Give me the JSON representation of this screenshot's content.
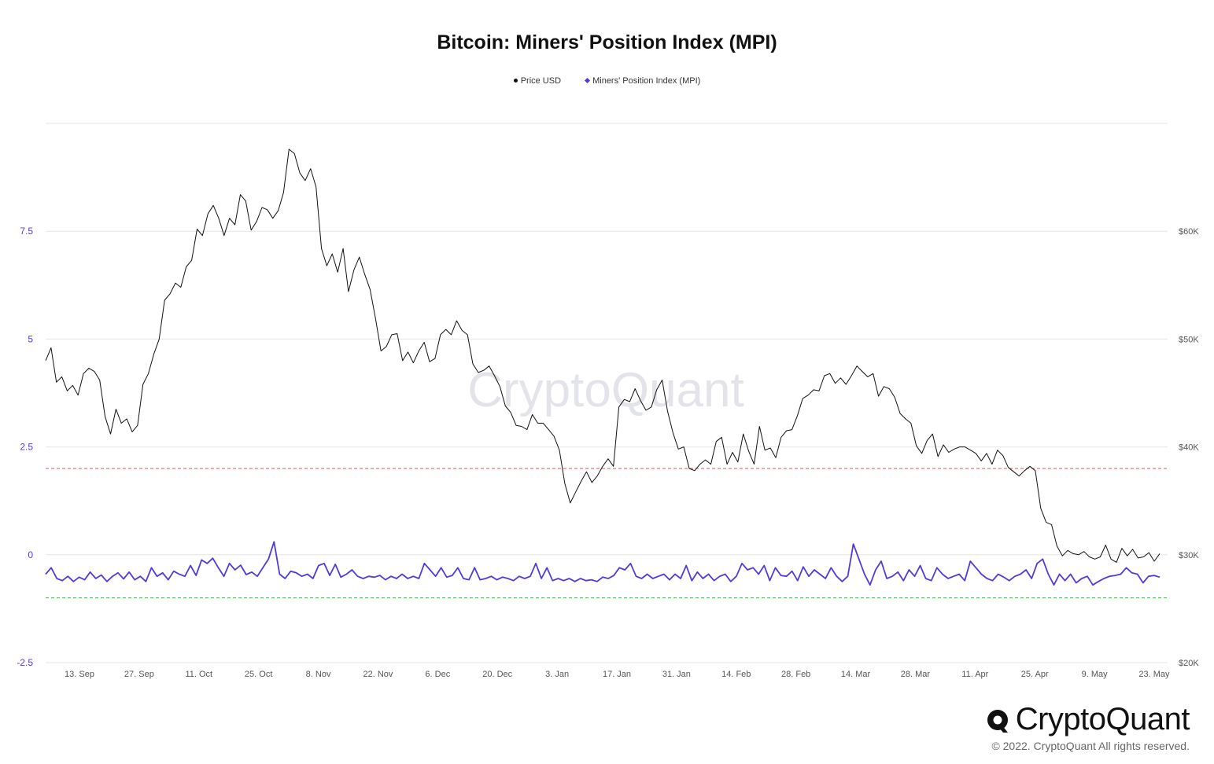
{
  "title": "Bitcoin: Miners' Position Index (MPI)",
  "legend": [
    {
      "label": "Price USD",
      "color": "#111111",
      "marker": "dot"
    },
    {
      "label": "Miners' Position Index (MPI)",
      "color": "#4f3bdb",
      "marker": "diamond"
    }
  ],
  "watermark": "CryptoQuant",
  "brand": {
    "name": "CryptoQuant",
    "copyright": "© 2022. CryptoQuant All rights reserved."
  },
  "chart_data": {
    "type": "line",
    "x_ticks": [
      "13. Sep",
      "27. Sep",
      "11. Oct",
      "25. Oct",
      "8. Nov",
      "22. Nov",
      "6. Dec",
      "20. Dec",
      "3. Jan",
      "17. Jan",
      "31. Jan",
      "14. Feb",
      "28. Feb",
      "14. Mar",
      "28. Mar",
      "11. Apr",
      "25. Apr",
      "9. May",
      "23. May"
    ],
    "left_axis": {
      "ticks": [
        "7.5",
        "5",
        "2.5",
        "0",
        "-2.5"
      ],
      "range": [
        -2.5,
        10
      ],
      "color": "#4f3bdb"
    },
    "right_axis": {
      "ticks": [
        "$60K",
        "$50K",
        "$40K",
        "$30K",
        "$20K"
      ],
      "range": [
        20000,
        70000
      ],
      "color": "#555555"
    },
    "reference_lines": [
      {
        "axis": "left",
        "value": 2.0,
        "color": "#e05555"
      },
      {
        "axis": "left",
        "value": -1.0,
        "color": "#4caf50"
      }
    ],
    "grid": true,
    "legend_position": "top-center",
    "series": [
      {
        "name": "Price USD",
        "axis": "right",
        "color": "#111111",
        "values": [
          48000,
          49200,
          46000,
          46500,
          45200,
          45700,
          44800,
          46800,
          47300,
          47000,
          46200,
          42800,
          41200,
          43500,
          42200,
          42600,
          41400,
          42000,
          45800,
          46800,
          48600,
          50000,
          53600,
          54200,
          55200,
          54800,
          56700,
          57300,
          60200,
          59600,
          61600,
          62400,
          61200,
          59600,
          61200,
          60600,
          63400,
          62800,
          60100,
          60900,
          62200,
          62000,
          61200,
          61900,
          63600,
          67600,
          67200,
          65400,
          64700,
          65800,
          64100,
          58400,
          56800,
          57900,
          56200,
          58400,
          54400,
          56400,
          57600,
          56000,
          54600,
          51900,
          48900,
          49300,
          50400,
          50500,
          48000,
          48800,
          47800,
          48900,
          49700,
          47900,
          48200,
          50400,
          50900,
          50400,
          51700,
          50800,
          50400,
          47700,
          46900,
          47100,
          47500,
          46600,
          45600,
          43800,
          43200,
          42000,
          41900,
          41600,
          43000,
          42200,
          42200,
          41600,
          41000,
          39700,
          36600,
          34800,
          35800,
          36800,
          37700,
          36700,
          37300,
          38200,
          38900,
          38200,
          43700,
          44400,
          44200,
          45400,
          44300,
          43400,
          43700,
          45300,
          46200,
          43300,
          41300,
          39800,
          40000,
          38000,
          37800,
          38400,
          38800,
          38400,
          40500,
          40900,
          38400,
          39500,
          38600,
          41200,
          39600,
          38400,
          41900,
          39700,
          39900,
          39000,
          40900,
          41500,
          41600,
          42900,
          44500,
          44800,
          45300,
          45200,
          46600,
          46800,
          45900,
          46400,
          45800,
          46600,
          47500,
          47000,
          46500,
          46800,
          44700,
          45600,
          45400,
          44600,
          43100,
          42600,
          42200,
          40100,
          39400,
          40600,
          41200,
          39100,
          40200,
          39500,
          39800,
          40000,
          40000,
          39700,
          39400,
          38700,
          39400,
          38400,
          39700,
          39200,
          38100,
          37700,
          37300,
          37800,
          38200,
          37800,
          34300,
          33000,
          32800,
          30800,
          29900,
          30400,
          30100,
          30000,
          30300,
          29800,
          29600,
          29800,
          30900,
          29600,
          29300,
          30600,
          29900,
          30500,
          29700,
          29800,
          30200,
          29400,
          30100
        ]
      },
      {
        "name": "Miners' Position Index (MPI)",
        "axis": "left",
        "color": "#4f3bdb",
        "values": [
          -0.45,
          -0.3,
          -0.55,
          -0.6,
          -0.5,
          -0.62,
          -0.52,
          -0.58,
          -0.4,
          -0.55,
          -0.47,
          -0.62,
          -0.5,
          -0.42,
          -0.56,
          -0.4,
          -0.58,
          -0.5,
          -0.62,
          -0.3,
          -0.5,
          -0.42,
          -0.58,
          -0.38,
          -0.45,
          -0.5,
          -0.25,
          -0.48,
          -0.12,
          -0.2,
          -0.08,
          -0.3,
          -0.5,
          -0.2,
          -0.35,
          -0.24,
          -0.46,
          -0.4,
          -0.5,
          -0.3,
          -0.1,
          0.3,
          -0.45,
          -0.55,
          -0.38,
          -0.42,
          -0.5,
          -0.45,
          -0.55,
          -0.25,
          -0.2,
          -0.48,
          -0.22,
          -0.52,
          -0.45,
          -0.35,
          -0.5,
          -0.55,
          -0.5,
          -0.52,
          -0.48,
          -0.58,
          -0.5,
          -0.55,
          -0.45,
          -0.55,
          -0.5,
          -0.55,
          -0.2,
          -0.35,
          -0.5,
          -0.3,
          -0.52,
          -0.48,
          -0.3,
          -0.55,
          -0.58,
          -0.3,
          -0.58,
          -0.55,
          -0.5,
          -0.58,
          -0.52,
          -0.55,
          -0.6,
          -0.5,
          -0.55,
          -0.5,
          -0.2,
          -0.55,
          -0.3,
          -0.6,
          -0.55,
          -0.6,
          -0.55,
          -0.62,
          -0.55,
          -0.6,
          -0.58,
          -0.62,
          -0.52,
          -0.55,
          -0.48,
          -0.3,
          -0.35,
          -0.2,
          -0.5,
          -0.55,
          -0.45,
          -0.55,
          -0.5,
          -0.45,
          -0.58,
          -0.45,
          -0.55,
          -0.25,
          -0.6,
          -0.4,
          -0.55,
          -0.45,
          -0.6,
          -0.5,
          -0.45,
          -0.62,
          -0.5,
          -0.2,
          -0.35,
          -0.3,
          -0.45,
          -0.25,
          -0.6,
          -0.3,
          -0.48,
          -0.5,
          -0.38,
          -0.6,
          -0.28,
          -0.5,
          -0.35,
          -0.45,
          -0.55,
          -0.3,
          -0.5,
          -0.62,
          -0.5,
          0.25,
          -0.1,
          -0.45,
          -0.7,
          -0.35,
          -0.15,
          -0.55,
          -0.5,
          -0.4,
          -0.6,
          -0.35,
          -0.5,
          -0.25,
          -0.55,
          -0.6,
          -0.3,
          -0.45,
          -0.55,
          -0.5,
          -0.45,
          -0.6,
          -0.15,
          -0.3,
          -0.45,
          -0.55,
          -0.6,
          -0.45,
          -0.52,
          -0.6,
          -0.5,
          -0.45,
          -0.35,
          -0.55,
          -0.2,
          -0.1,
          -0.45,
          -0.7,
          -0.45,
          -0.6,
          -0.45,
          -0.65,
          -0.55,
          -0.5,
          -0.7,
          -0.62,
          -0.55,
          -0.5,
          -0.48,
          -0.45,
          -0.3,
          -0.42,
          -0.45,
          -0.65,
          -0.5,
          -0.48,
          -0.52
        ]
      }
    ]
  }
}
